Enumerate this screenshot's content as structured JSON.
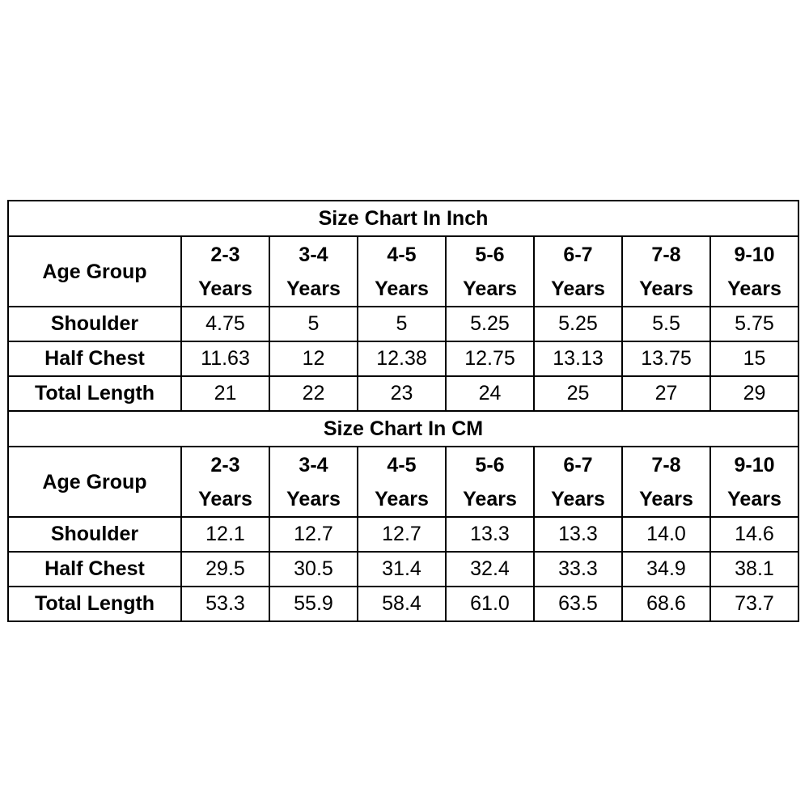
{
  "sections": [
    {
      "title": "Size Chart In Inch",
      "header": {
        "label": "Age Group",
        "columns": [
          {
            "range": "2-3",
            "unit": "Years"
          },
          {
            "range": "3-4",
            "unit": "Years"
          },
          {
            "range": "4-5",
            "unit": "Years"
          },
          {
            "range": "5-6",
            "unit": "Years"
          },
          {
            "range": "6-7",
            "unit": "Years"
          },
          {
            "range": "7-8",
            "unit": "Years"
          },
          {
            "range": "9-10",
            "unit": "Years"
          }
        ]
      },
      "rows": [
        {
          "label": "Shoulder",
          "values": [
            "4.75",
            "5",
            "5",
            "5.25",
            "5.25",
            "5.5",
            "5.75"
          ]
        },
        {
          "label": "Half Chest",
          "values": [
            "11.63",
            "12",
            "12.38",
            "12.75",
            "13.13",
            "13.75",
            "15"
          ]
        },
        {
          "label": "Total Length",
          "values": [
            "21",
            "22",
            "23",
            "24",
            "25",
            "27",
            "29"
          ]
        }
      ]
    },
    {
      "title": "Size Chart In CM",
      "header": {
        "label": "Age Group",
        "columns": [
          {
            "range": "2-3",
            "unit": "Years"
          },
          {
            "range": "3-4",
            "unit": "Years"
          },
          {
            "range": "4-5",
            "unit": "Years"
          },
          {
            "range": "5-6",
            "unit": "Years"
          },
          {
            "range": "6-7",
            "unit": "Years"
          },
          {
            "range": "7-8",
            "unit": "Years"
          },
          {
            "range": "9-10",
            "unit": "Years"
          }
        ]
      },
      "rows": [
        {
          "label": "Shoulder",
          "values": [
            "12.1",
            "12.7",
            "12.7",
            "13.3",
            "13.3",
            "14.0",
            "14.6"
          ]
        },
        {
          "label": "Half Chest",
          "values": [
            "29.5",
            "30.5",
            "31.4",
            "32.4",
            "33.3",
            "34.9",
            "38.1"
          ]
        },
        {
          "label": "Total Length",
          "values": [
            "53.3",
            "55.9",
            "58.4",
            "61.0",
            "63.5",
            "68.6",
            "73.7"
          ]
        }
      ]
    }
  ]
}
